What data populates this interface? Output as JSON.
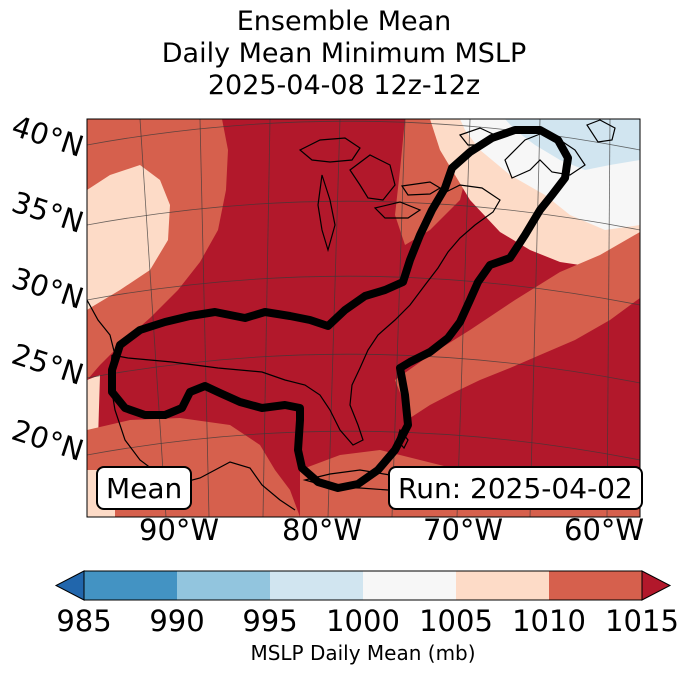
{
  "title": {
    "line1": "Ensemble Mean",
    "line2": "Daily Mean Minimum MSLP",
    "line3": "2025-04-08 12z-12z"
  },
  "map": {
    "lat_labels": [
      "40°N",
      "35°N",
      "30°N",
      "25°N",
      "20°N"
    ],
    "lon_labels": [
      "90°W",
      "80°W",
      "70°W",
      "60°W"
    ],
    "extent": {
      "lon_min": -97,
      "lon_max": -58,
      "lat_min": 15,
      "lat_max": 43
    },
    "mean_badge": "Mean",
    "run_badge": "Run: 2025-04-02",
    "contour_color": "#000000"
  },
  "colorbar": {
    "ticks": [
      "985",
      "990",
      "995",
      "1000",
      "1005",
      "1010",
      "1015"
    ],
    "label": "MSLP Daily Mean (mb)",
    "bins": [
      {
        "range": "<985",
        "color": "#2166ac"
      },
      {
        "range": "985-990",
        "color": "#4393c3"
      },
      {
        "range": "990-995",
        "color": "#92c5de"
      },
      {
        "range": "995-1000",
        "color": "#d1e5f0"
      },
      {
        "range": "1000-1005",
        "color": "#f7f7f7"
      },
      {
        "range": "1005-1010",
        "color": "#fddbc7"
      },
      {
        "range": "1010-1015",
        "color": "#d6604d"
      },
      {
        "range": ">1015",
        "color": "#b2182b"
      }
    ]
  }
}
